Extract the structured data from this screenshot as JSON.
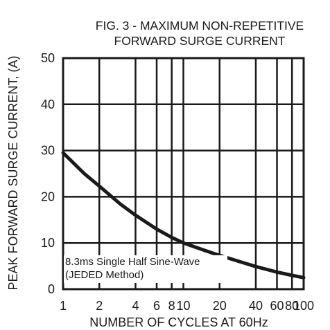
{
  "chart_data": {
    "type": "line",
    "title_lines": [
      "FIG. 3 - MAXIMUM NON-REPETITIVE",
      "FORWARD SURGE CURRENT"
    ],
    "xlabel": "NUMBER OF CYCLES AT 60Hz",
    "ylabel": "PEAK FORWARD SURGE CURRENT, (A)",
    "x_scale": "log",
    "xlim": [
      1,
      100
    ],
    "ylim": [
      0,
      50
    ],
    "x_ticks": [
      1,
      2,
      4,
      6,
      8,
      10,
      20,
      40,
      60,
      80,
      100
    ],
    "x_tick_labels": [
      "1",
      "2",
      "4",
      "6",
      "8",
      "10",
      "20",
      "40",
      "60",
      "80",
      "100"
    ],
    "y_ticks": [
      0,
      10,
      20,
      30,
      40,
      50
    ],
    "y_tick_labels": [
      "0",
      "10",
      "20",
      "30",
      "40",
      "50"
    ],
    "grid": true,
    "legend": "none",
    "annotation_lines": [
      "8.3ms Single Half Sine-Wave",
      "(JEDED Method)"
    ],
    "series": [
      {
        "x": [
          1,
          1.5,
          2,
          3,
          4,
          6,
          8,
          10,
          15,
          20,
          30,
          40,
          60,
          80,
          100
        ],
        "y": [
          29.5,
          25,
          22.3,
          18.4,
          16,
          13,
          11.2,
          10,
          8.4,
          7.3,
          5.9,
          4.9,
          3.7,
          3,
          2.5
        ]
      }
    ],
    "colors": {
      "curve": "#1a1a1a",
      "grid": "#1a1a1a",
      "background": "#ffffff"
    }
  }
}
